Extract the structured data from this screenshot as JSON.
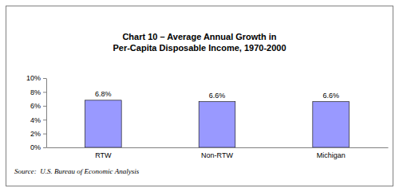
{
  "chart_data": {
    "type": "bar",
    "title": "Chart 10 – Average Annual Growth in Per-Capita Disposable Income, 1970-2000",
    "source": "Source:  U.S. Bureau of Economic Analysis",
    "categories": [
      "RTW",
      "Non-RTW",
      "Michigan"
    ],
    "values": [
      6.8,
      6.6,
      6.6
    ],
    "value_labels": [
      "6.8%",
      "6.6%",
      "6.6%"
    ],
    "data_labels": true,
    "color": "#9999ff",
    "ylim": [
      0,
      10
    ],
    "yticks": [
      {
        "value": 0,
        "label": "0%"
      },
      {
        "value": 2,
        "label": "2%"
      },
      {
        "value": 4,
        "label": "4%"
      },
      {
        "value": 6,
        "label": "6%"
      },
      {
        "value": 8,
        "label": "8%"
      },
      {
        "value": 10,
        "label": "10%"
      }
    ],
    "grid": false
  }
}
